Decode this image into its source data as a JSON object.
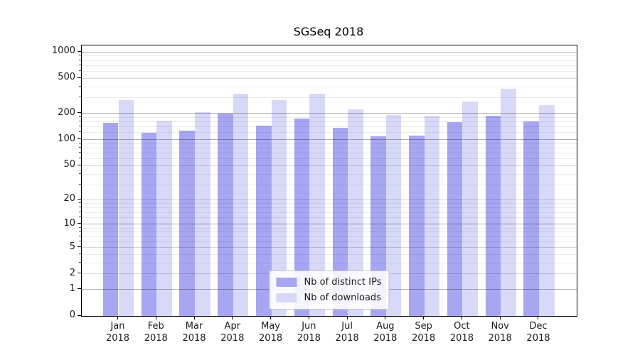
{
  "chart_data": {
    "type": "bar",
    "title": "SGSeq 2018",
    "categories": [
      "Jan 2018",
      "Feb 2018",
      "Mar 2018",
      "Apr 2018",
      "May 2018",
      "Jun 2018",
      "Jul 2018",
      "Aug 2018",
      "Sep 2018",
      "Oct 2018",
      "Nov 2018",
      "Dec 2018"
    ],
    "series": [
      {
        "name": "Nb of distinct IPs",
        "color": "#a6a6f2",
        "values": [
          157,
          121,
          126,
          199,
          146,
          175,
          137,
          110,
          111,
          159,
          189,
          161
        ]
      },
      {
        "name": "Nb of downloads",
        "color": "#d8d8f9",
        "values": [
          283,
          166,
          208,
          334,
          282,
          335,
          224,
          190,
          187,
          275,
          385,
          248
        ]
      }
    ],
    "yaxis": {
      "scale": "log1p",
      "tick_values": [
        0,
        1,
        2,
        5,
        10,
        20,
        50,
        100,
        200,
        500,
        1000
      ],
      "tick_labels": [
        "0",
        "1",
        "2",
        "5",
        "10",
        "20",
        "50",
        "100",
        "200",
        "500",
        "1000"
      ],
      "minor_tick_values": [
        3,
        4,
        6,
        7,
        8,
        9,
        12,
        14,
        16,
        18,
        30,
        40,
        60,
        70,
        80,
        90,
        120,
        140,
        160,
        180,
        300,
        400,
        600,
        700,
        800,
        900
      ],
      "emphasized_tick_values": [
        1,
        10,
        100,
        200,
        1000
      ],
      "ylim": [
        0,
        1190
      ]
    },
    "xlabel": "",
    "ylabel": "",
    "grid": true,
    "legend_position": "lower center"
  },
  "colors": {
    "bar_distinct_ips": "#a6a6f2",
    "bar_downloads": "#d8d8f9",
    "grid_minor": "#ececec",
    "grid_major": "#d6d6d6",
    "grid_emphasized": "#b3b3b3",
    "axis": "#000000",
    "text": "#1a1a1a",
    "background": "#ffffff"
  }
}
